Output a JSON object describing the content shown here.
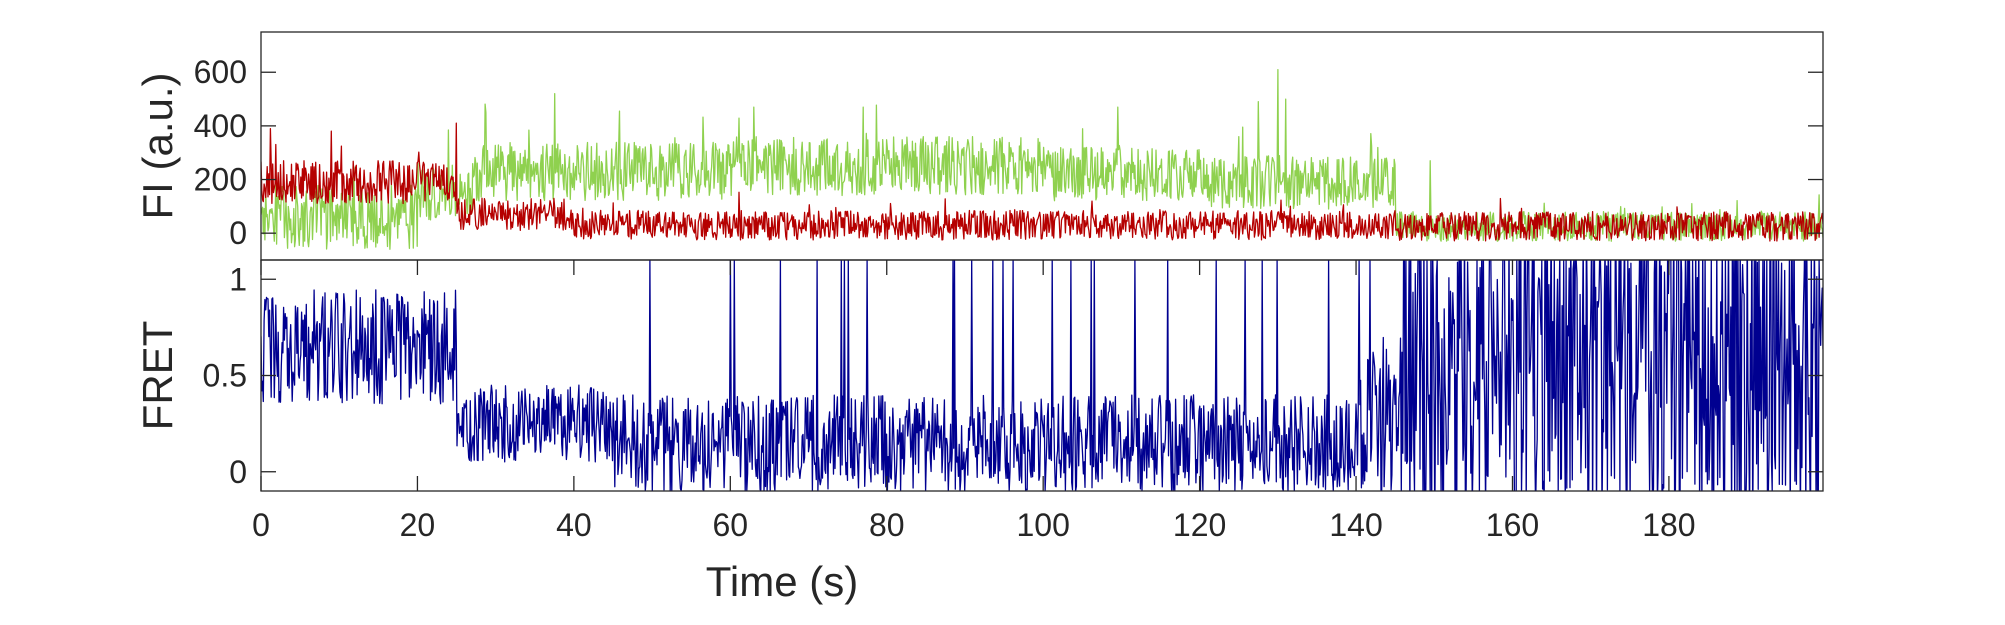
{
  "chart_data": [
    {
      "type": "line",
      "panel": "top",
      "ylabel": "FI (a.u.)",
      "xlabel": "",
      "xlim": [
        0,
        199.7
      ],
      "ylim": [
        -100,
        750
      ],
      "yticks": [
        0,
        200,
        400,
        600
      ],
      "ytick_labels": [
        "0",
        "200",
        "400",
        "600"
      ],
      "x_tick_labels_shown": false,
      "grid": false,
      "series": [
        {
          "key": "donor",
          "color": "#8fd14f",
          "segments": [
            [
              0,
              20,
              60,
              120
            ],
            [
              20,
              27,
              150,
              110
            ],
            [
              27,
              60,
              230,
              110
            ],
            [
              60,
              100,
              250,
              110
            ],
            [
              100,
              120,
              220,
              100
            ],
            [
              120,
              145,
              190,
              100
            ],
            [
              145,
              200,
              25,
              55
            ]
          ],
          "peaks": [
            [
              37.5,
              520
            ],
            [
              63,
              470
            ],
            [
              77,
              470
            ],
            [
              109.5,
              470
            ],
            [
              127.5,
              490
            ],
            [
              130,
              610
            ],
            [
              131,
              500
            ],
            [
              149.5,
              270
            ]
          ]
        },
        {
          "key": "acceptor",
          "color": "#b50000",
          "segments": [
            [
              0,
              25,
              190,
              80
            ],
            [
              25,
              40,
              70,
              60
            ],
            [
              40,
              145,
              30,
              55
            ],
            [
              145,
              200,
              25,
              55
            ]
          ],
          "peaks": [
            [
              1.2,
              390
            ],
            [
              9,
              380
            ],
            [
              25,
              410
            ]
          ]
        }
      ]
    },
    {
      "type": "line",
      "panel": "bottom",
      "ylabel": "FRET",
      "xlabel": "Time (s)",
      "xlim": [
        0,
        199.7
      ],
      "ylim": [
        -0.1,
        1.1
      ],
      "xticks": [
        0,
        20,
        40,
        60,
        80,
        100,
        120,
        140,
        160,
        180
      ],
      "xtick_labels": [
        "0",
        "20",
        "40",
        "60",
        "80",
        "100",
        "120",
        "140",
        "160",
        "180"
      ],
      "yticks": [
        0,
        0.5,
        1
      ],
      "ytick_labels": [
        "0",
        "0.5",
        "1"
      ],
      "grid": false,
      "series": [
        {
          "key": "fret",
          "color": "#000090",
          "segments": [
            [
              0,
              25,
              0.65,
              0.3
            ],
            [
              25,
              45,
              0.25,
              0.2
            ],
            [
              45,
              140,
              0.15,
              0.25
            ],
            [
              140,
              146,
              0.3,
              0.4
            ],
            [
              146,
              200,
              0.55,
              0.85
            ]
          ],
          "spike_probability": 0.06
        }
      ]
    }
  ]
}
